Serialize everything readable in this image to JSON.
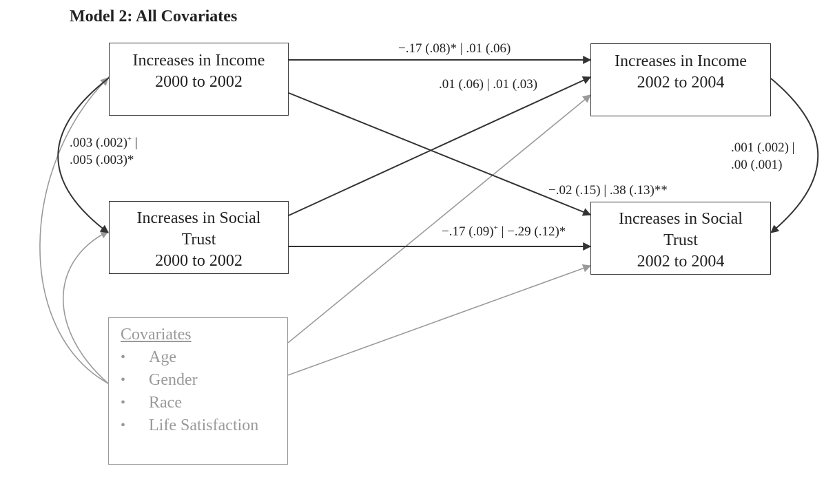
{
  "title": "Model 2: All Covariates",
  "boxes": {
    "income_t1": {
      "line1": "Increases in Income",
      "line2": "2000 to 2002"
    },
    "trust_t1": {
      "line1": "Increases in Social",
      "line2": "Trust",
      "line3": "2000 to 2002"
    },
    "income_t2": {
      "line1": "Increases in Income",
      "line2": "2002 to 2004"
    },
    "trust_t2": {
      "line1": "Increases in Social",
      "line2": "Trust",
      "line3": "2002 to 2004"
    },
    "covariates": {
      "heading": "Covariates",
      "bullet": "•",
      "items": [
        "Age",
        "Gender",
        "Race",
        "Life Satisfaction"
      ]
    }
  },
  "paths": {
    "income_income": "−.17 (.08)* | .01 (.06)",
    "trust_income": ".01 (.06) | .01 (.03)",
    "income_trust": "−.02 (.15) | .38 (.13)**",
    "trust_trust_a": "−.17 (.09)",
    "trust_trust_sup": "+",
    "trust_trust_b": " | −.29 (.12)*",
    "cov_t1_a": ".003 (.002)",
    "cov_t1_sup": "+",
    "cov_t1_b": " |",
    "cov_t1_line2": ".005 (.003)*",
    "cov_t2_line1": ".001 (.002) |",
    "cov_t2_line2": ".00 (.001)"
  },
  "colors": {
    "main": "#333333",
    "covariate": "#9a9a9a"
  }
}
